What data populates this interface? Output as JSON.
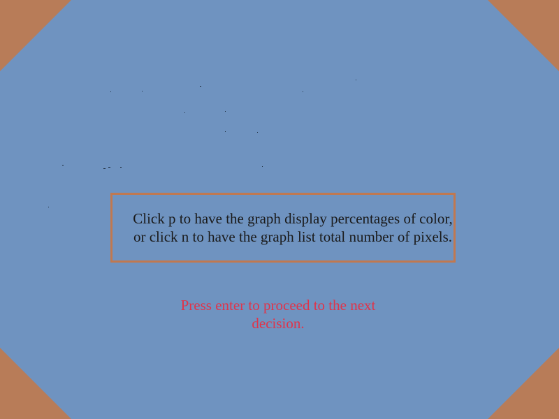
{
  "colors": {
    "background": "#6f93c0",
    "corner": "#b87c58",
    "box_border": "#c07850",
    "instruction_text": "#1a1a1a",
    "prompt_text": "#e0344a"
  },
  "instruction": {
    "text": "Click p to have the graph display percentages of color, or click n to have the graph list total number of pixels."
  },
  "prompt": {
    "text": "Press enter to proceed to the next decision."
  }
}
